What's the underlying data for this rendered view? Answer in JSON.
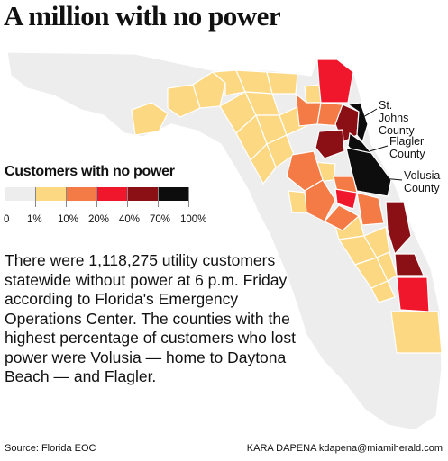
{
  "header": {
    "title": "A million with no power"
  },
  "legend": {
    "title": "Customers with no power",
    "bins": [
      {
        "label": "0",
        "color": "#ededed"
      },
      {
        "label": "1%",
        "color": "#fdd882"
      },
      {
        "label": "10%",
        "color": "#f47b45"
      },
      {
        "label": "20%",
        "color": "#f0162b"
      },
      {
        "label": "40%",
        "color": "#8b1016"
      },
      {
        "label": "70%",
        "color": "#0d0d0d"
      },
      {
        "label": "100%",
        "color": ""
      }
    ]
  },
  "callouts": {
    "st_johns": "St. Johns County",
    "flagler": "Flagler County",
    "volusia": "Volusia County"
  },
  "body": {
    "text": "There were 1,118,275 utility customers statewide without power at 6 p.m. Friday according to Florida's Emergency Operations Center. The counties with the highest percentage of customers who lost power were Volusia — home to Daytona Beach — and Flagler."
  },
  "footer": {
    "source": "Source: Florida EOC",
    "credit": "KARA DAPENA kdapena@miamiherald.com"
  },
  "map_colors": {
    "none": "#ededed",
    "low": "#fdd882",
    "mid": "#f47b45",
    "high": "#f0162b",
    "vhigh": "#8b1016",
    "max": "#0d0d0d",
    "border": "#ffffff"
  }
}
